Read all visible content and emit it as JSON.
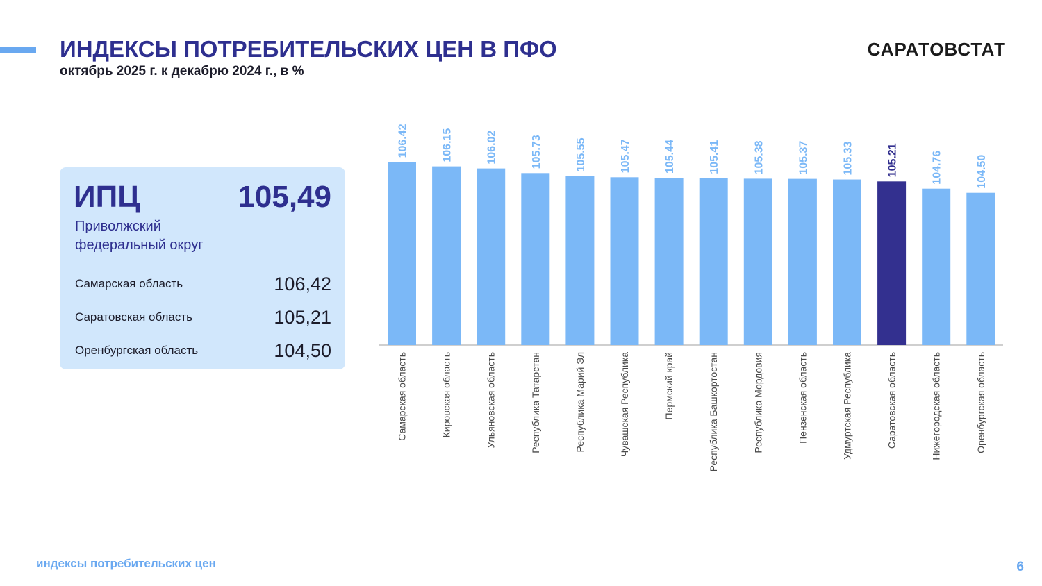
{
  "header": {
    "title": "ИНДЕКСЫ ПОТРЕБИТЕЛЬСКИХ ЦЕН В ПФО",
    "subtitle": "октябрь 2025 г. к декабрю 2024 г., в %",
    "brand": "САРАТОВСТАТ"
  },
  "cpi_card": {
    "label": "ИПЦ",
    "value": "105,49",
    "region": "Приволжский федеральный округ",
    "rows": [
      {
        "name": "Самарская область",
        "value": "106,42"
      },
      {
        "name": "Саратовская область",
        "value": "105,21"
      },
      {
        "name": "Оренбургская область",
        "value": "104,50"
      }
    ]
  },
  "footer": {
    "text": "индексы потребительских цен",
    "page": "6"
  },
  "colors": {
    "title": "#2e2f8f",
    "accent": "#69a8f0",
    "bar": "#7bb8f7",
    "highlight_bar": "#33308f",
    "card_bg": "#d1e7fc"
  },
  "chart_data": {
    "type": "bar",
    "categories": [
      "Самарская область",
      "Кировская область",
      "Ульяновская область",
      "Республика Татарстан",
      "Республика Марий Эл",
      "Чувашская Республика",
      "Пермский край",
      "Республика Башкортостан",
      "Республика Мордовия",
      "Пензенская область",
      "Удмуртская Республика",
      "Саратовская область",
      "Нижегородская область",
      "Оренбургская область"
    ],
    "values": [
      106.42,
      106.15,
      106.02,
      105.73,
      105.55,
      105.47,
      105.44,
      105.41,
      105.38,
      105.37,
      105.33,
      105.21,
      104.76,
      104.5
    ],
    "data_labels": [
      "106.42",
      "106.15",
      "106.02",
      "105.73",
      "105.55",
      "105.47",
      "105.44",
      "105.41",
      "105.38",
      "105.37",
      "105.33",
      "105.21",
      "104.76",
      "104.50"
    ],
    "highlight": "Саратовская область",
    "ylim": [
      95,
      107
    ],
    "grid": false,
    "legend": "none"
  }
}
